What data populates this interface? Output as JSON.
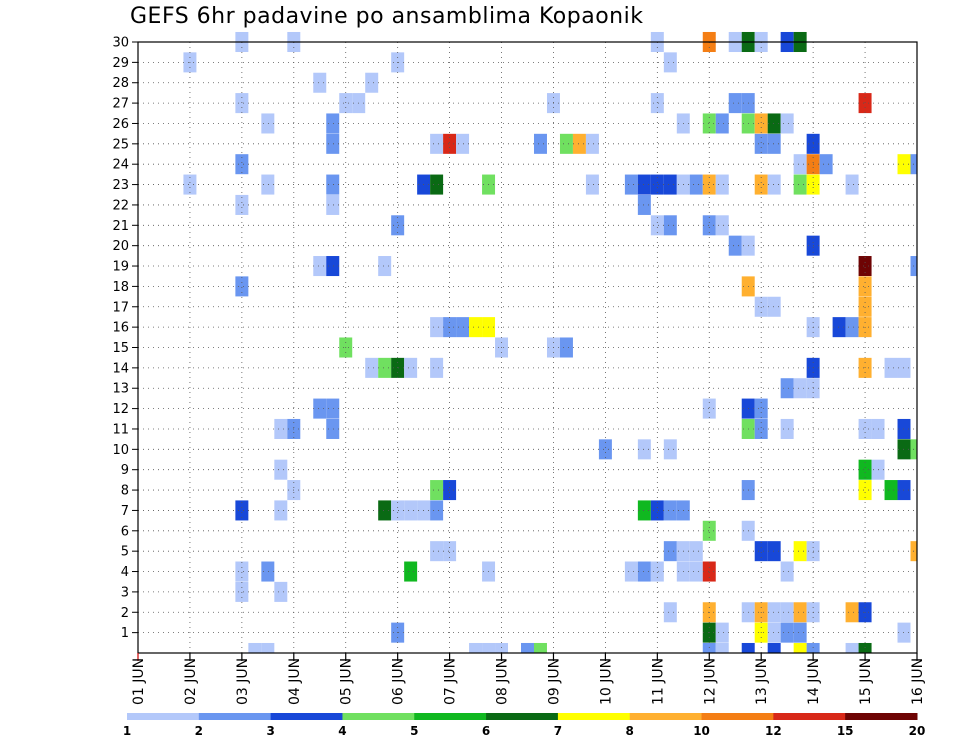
{
  "chart_data": {
    "type": "heatmap",
    "title": "GEFS 6hr padavine po ansamblima Kopaonik",
    "xlabel": "",
    "ylabel": "",
    "x_ticks": [
      "01 JUN",
      "02 JUN",
      "03 JUN",
      "04 JUN",
      "05 JUN",
      "06 JUN",
      "07 JUN",
      "08 JUN",
      "09 JUN",
      "10 JUN",
      "11 JUN",
      "12 JUN",
      "13 JUN",
      "14 JUN",
      "15 JUN",
      "16 JUN"
    ],
    "y_ticks": [
      "1",
      "2",
      "3",
      "4",
      "5",
      "6",
      "7",
      "8",
      "9",
      "10",
      "11",
      "12",
      "13",
      "14",
      "15",
      "16",
      "17",
      "18",
      "19",
      "20",
      "21",
      "22",
      "23",
      "24",
      "25",
      "26",
      "27",
      "28",
      "29",
      "30"
    ],
    "xlim_days": [
      1,
      16
    ],
    "ylim_members": [
      0,
      30
    ],
    "grid": true,
    "scale": {
      "labels": [
        "1",
        "2",
        "3",
        "4",
        "5",
        "6",
        "7",
        "8",
        "10",
        "12",
        "15",
        "20"
      ],
      "colors": [
        "#b3c8fa",
        "#6a96f0",
        "#1848d8",
        "#70e060",
        "#10b820",
        "#0a6a14",
        "#ffff00",
        "#ffb030",
        "#f47e14",
        "#d82818",
        "#6e0404"
      ]
    },
    "cells": [
      [
        3.0,
        30,
        1
      ],
      [
        4.0,
        30,
        1
      ],
      [
        11.0,
        30,
        1
      ],
      [
        12.0,
        30,
        9
      ],
      [
        12.5,
        30,
        1
      ],
      [
        12.75,
        30,
        6
      ],
      [
        13.0,
        30,
        1
      ],
      [
        13.5,
        30,
        3
      ],
      [
        13.75,
        30,
        6
      ],
      [
        2.0,
        29,
        1
      ],
      [
        6.0,
        29,
        1
      ],
      [
        11.25,
        29,
        1
      ],
      [
        4.5,
        28,
        1
      ],
      [
        5.5,
        28,
        1
      ],
      [
        3.0,
        27,
        1
      ],
      [
        5.0,
        27,
        1
      ],
      [
        5.25,
        27,
        1
      ],
      [
        9.0,
        27,
        1
      ],
      [
        11.0,
        27,
        1
      ],
      [
        12.5,
        27,
        2
      ],
      [
        12.75,
        27,
        2
      ],
      [
        15.0,
        27,
        10
      ],
      [
        3.5,
        26,
        1
      ],
      [
        4.75,
        26,
        2
      ],
      [
        11.5,
        26,
        1
      ],
      [
        12.0,
        26,
        4
      ],
      [
        12.25,
        26,
        2
      ],
      [
        12.75,
        26,
        4
      ],
      [
        13.0,
        26,
        8
      ],
      [
        13.25,
        26,
        6
      ],
      [
        13.5,
        26,
        1
      ],
      [
        4.75,
        25,
        2
      ],
      [
        6.75,
        25,
        1
      ],
      [
        7.0,
        25,
        10
      ],
      [
        7.25,
        25,
        1
      ],
      [
        8.75,
        25,
        2
      ],
      [
        9.25,
        25,
        4
      ],
      [
        9.5,
        25,
        8
      ],
      [
        9.75,
        25,
        1
      ],
      [
        13.0,
        25,
        2
      ],
      [
        13.25,
        25,
        2
      ],
      [
        14.0,
        25,
        3
      ],
      [
        3.0,
        24,
        2
      ],
      [
        13.75,
        24,
        1
      ],
      [
        14.0,
        24,
        9
      ],
      [
        14.25,
        24,
        2
      ],
      [
        15.75,
        24,
        7
      ],
      [
        16.0,
        24,
        2
      ],
      [
        2.0,
        23,
        1
      ],
      [
        3.5,
        23,
        1
      ],
      [
        4.75,
        23,
        2
      ],
      [
        6.5,
        23,
        3
      ],
      [
        6.75,
        23,
        6
      ],
      [
        7.75,
        23,
        4
      ],
      [
        9.75,
        23,
        1
      ],
      [
        10.5,
        23,
        2
      ],
      [
        10.75,
        23,
        3
      ],
      [
        11.0,
        23,
        3
      ],
      [
        11.25,
        23,
        3
      ],
      [
        11.5,
        23,
        1
      ],
      [
        11.75,
        23,
        2
      ],
      [
        12.0,
        23,
        8
      ],
      [
        12.25,
        23,
        1
      ],
      [
        13.0,
        23,
        8
      ],
      [
        13.25,
        23,
        1
      ],
      [
        13.75,
        23,
        4
      ],
      [
        14.0,
        23,
        7
      ],
      [
        14.75,
        23,
        1
      ],
      [
        3.0,
        22,
        1
      ],
      [
        4.75,
        22,
        1
      ],
      [
        10.75,
        22,
        2
      ],
      [
        6.0,
        21,
        2
      ],
      [
        11.0,
        21,
        1
      ],
      [
        11.25,
        21,
        2
      ],
      [
        12.0,
        21,
        2
      ],
      [
        12.25,
        21,
        1
      ],
      [
        12.5,
        20,
        2
      ],
      [
        12.75,
        20,
        1
      ],
      [
        14.0,
        20,
        3
      ],
      [
        4.5,
        19,
        1
      ],
      [
        4.75,
        19,
        3
      ],
      [
        5.75,
        19,
        1
      ],
      [
        15.0,
        19,
        11
      ],
      [
        16.0,
        19,
        2
      ],
      [
        3.0,
        18,
        2
      ],
      [
        12.75,
        18,
        8
      ],
      [
        15.0,
        18,
        8
      ],
      [
        13.0,
        17,
        1
      ],
      [
        13.25,
        17,
        1
      ],
      [
        15.0,
        17,
        8
      ],
      [
        6.75,
        16,
        1
      ],
      [
        7.0,
        16,
        2
      ],
      [
        7.25,
        16,
        2
      ],
      [
        7.5,
        16,
        7
      ],
      [
        7.75,
        16,
        7
      ],
      [
        14.0,
        16,
        1
      ],
      [
        14.5,
        16,
        3
      ],
      [
        14.75,
        16,
        2
      ],
      [
        15.0,
        16,
        8
      ],
      [
        5.0,
        15,
        4
      ],
      [
        8.0,
        15,
        1
      ],
      [
        9.0,
        15,
        1
      ],
      [
        9.25,
        15,
        2
      ],
      [
        5.5,
        14,
        1
      ],
      [
        5.75,
        14,
        4
      ],
      [
        6.0,
        14,
        6
      ],
      [
        6.25,
        14,
        1
      ],
      [
        6.75,
        14,
        1
      ],
      [
        14.0,
        14,
        3
      ],
      [
        15.0,
        14,
        8
      ],
      [
        15.5,
        14,
        1
      ],
      [
        15.75,
        14,
        1
      ],
      [
        13.5,
        13,
        2
      ],
      [
        13.75,
        13,
        1
      ],
      [
        14.0,
        13,
        1
      ],
      [
        4.5,
        12,
        2
      ],
      [
        4.75,
        12,
        2
      ],
      [
        12.0,
        12,
        1
      ],
      [
        12.75,
        12,
        3
      ],
      [
        13.0,
        12,
        2
      ],
      [
        3.75,
        11,
        1
      ],
      [
        4.0,
        11,
        2
      ],
      [
        4.75,
        11,
        2
      ],
      [
        12.75,
        11,
        4
      ],
      [
        13.0,
        11,
        2
      ],
      [
        13.5,
        11,
        1
      ],
      [
        15.0,
        11,
        1
      ],
      [
        15.25,
        11,
        1
      ],
      [
        15.75,
        11,
        3
      ],
      [
        10.0,
        10,
        2
      ],
      [
        10.75,
        10,
        1
      ],
      [
        11.25,
        10,
        1
      ],
      [
        15.75,
        10,
        6
      ],
      [
        16.0,
        10,
        4
      ],
      [
        3.75,
        9,
        1
      ],
      [
        15.0,
        9,
        5
      ],
      [
        15.25,
        9,
        1
      ],
      [
        4.0,
        8,
        1
      ],
      [
        6.75,
        8,
        4
      ],
      [
        7.0,
        8,
        3
      ],
      [
        12.75,
        8,
        2
      ],
      [
        15.0,
        8,
        7
      ],
      [
        15.5,
        8,
        5
      ],
      [
        15.75,
        8,
        3
      ],
      [
        3.0,
        7,
        3
      ],
      [
        3.75,
        7,
        1
      ],
      [
        5.75,
        7,
        6
      ],
      [
        6.0,
        7,
        1
      ],
      [
        6.25,
        7,
        1
      ],
      [
        6.5,
        7,
        1
      ],
      [
        6.75,
        7,
        2
      ],
      [
        10.75,
        7,
        5
      ],
      [
        11.0,
        7,
        3
      ],
      [
        11.25,
        7,
        2
      ],
      [
        11.5,
        7,
        2
      ],
      [
        12.0,
        6,
        4
      ],
      [
        12.75,
        6,
        1
      ],
      [
        6.75,
        5,
        1
      ],
      [
        7.0,
        5,
        1
      ],
      [
        11.25,
        5,
        2
      ],
      [
        11.5,
        5,
        1
      ],
      [
        11.75,
        5,
        1
      ],
      [
        13.0,
        5,
        3
      ],
      [
        13.25,
        5,
        3
      ],
      [
        13.75,
        5,
        7
      ],
      [
        14.0,
        5,
        1
      ],
      [
        16.0,
        5,
        8
      ],
      [
        3.0,
        4,
        1
      ],
      [
        3.5,
        4,
        2
      ],
      [
        6.25,
        4,
        5
      ],
      [
        7.75,
        4,
        1
      ],
      [
        10.5,
        4,
        1
      ],
      [
        10.75,
        4,
        2
      ],
      [
        11.0,
        4,
        1
      ],
      [
        11.5,
        4,
        1
      ],
      [
        11.75,
        4,
        1
      ],
      [
        12.0,
        4,
        10
      ],
      [
        13.5,
        4,
        1
      ],
      [
        3.0,
        3,
        1
      ],
      [
        3.75,
        3,
        1
      ],
      [
        11.25,
        2,
        1
      ],
      [
        12.0,
        2,
        8
      ],
      [
        12.75,
        2,
        1
      ],
      [
        13.0,
        2,
        8
      ],
      [
        13.25,
        2,
        1
      ],
      [
        13.5,
        2,
        1
      ],
      [
        13.75,
        2,
        8
      ],
      [
        14.0,
        2,
        1
      ],
      [
        14.75,
        2,
        8
      ],
      [
        15.0,
        2,
        3
      ],
      [
        6.0,
        1,
        2
      ],
      [
        12.0,
        1,
        6
      ],
      [
        12.25,
        1,
        1
      ],
      [
        13.0,
        1,
        7
      ],
      [
        13.25,
        1,
        1
      ],
      [
        13.5,
        1,
        2
      ],
      [
        13.75,
        1,
        2
      ],
      [
        15.75,
        1,
        1
      ],
      [
        3.25,
        0,
        1
      ],
      [
        3.5,
        0,
        1
      ],
      [
        7.5,
        0,
        1
      ],
      [
        7.75,
        0,
        1
      ],
      [
        8.0,
        0,
        1
      ],
      [
        8.5,
        0,
        2
      ],
      [
        8.75,
        0,
        4
      ],
      [
        12.0,
        0,
        2
      ],
      [
        12.25,
        0,
        1
      ],
      [
        12.75,
        0,
        3
      ],
      [
        13.25,
        0,
        3
      ],
      [
        13.75,
        0,
        7
      ],
      [
        14.0,
        0,
        2
      ],
      [
        14.75,
        0,
        1
      ],
      [
        15.0,
        0,
        6
      ]
    ]
  }
}
